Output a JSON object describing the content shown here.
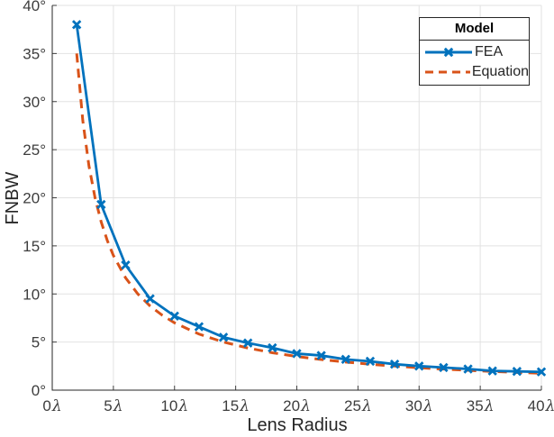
{
  "figure": {
    "background": "#ffffff"
  },
  "chart_data": {
    "type": "line",
    "title": "",
    "xlabel": "Lens Radius",
    "ylabel": "FNBW",
    "xlim": [
      0,
      40
    ],
    "ylim": [
      0,
      40
    ],
    "x_ticks": [
      0,
      5,
      10,
      15,
      20,
      25,
      30,
      35,
      40
    ],
    "x_tick_unit": "λ",
    "y_ticks": [
      0,
      5,
      10,
      15,
      20,
      25,
      30,
      35,
      40
    ],
    "y_tick_unit": "°",
    "grid": true,
    "grid_color": "#e2e2e2",
    "axis_color": "#262626",
    "tick_label_color": "#3d3d3d",
    "legend": {
      "title": "Model",
      "position": "top-right-inside"
    },
    "series": [
      {
        "name": "FEA",
        "color": "#0072bd",
        "style": "solid",
        "marker": "x",
        "x": [
          2,
          4,
          6,
          8,
          10,
          12,
          14,
          16,
          18,
          20,
          22,
          24,
          26,
          28,
          30,
          32,
          34,
          36,
          38,
          40
        ],
        "y": [
          38,
          19.3,
          13,
          9.5,
          7.7,
          6.6,
          5.5,
          4.9,
          4.4,
          3.8,
          3.6,
          3.2,
          3.0,
          2.7,
          2.5,
          2.35,
          2.2,
          2.0,
          1.95,
          1.9
        ]
      },
      {
        "name": "Equation",
        "color": "#d95319",
        "style": "dashed",
        "marker": "none",
        "x": [
          2,
          2.5,
          3,
          3.5,
          4,
          4.5,
          5,
          6,
          7,
          8,
          9,
          10,
          12,
          14,
          16,
          18,
          20,
          22,
          24,
          26,
          28,
          30,
          32,
          34,
          36,
          38,
          40
        ],
        "y": [
          35,
          28,
          23.33,
          20,
          17.5,
          15.56,
          14,
          11.67,
          10,
          8.75,
          7.78,
          7,
          5.83,
          5,
          4.38,
          3.89,
          3.5,
          3.18,
          2.92,
          2.69,
          2.5,
          2.33,
          2.19,
          2.06,
          1.94,
          1.84,
          1.75
        ]
      }
    ]
  }
}
